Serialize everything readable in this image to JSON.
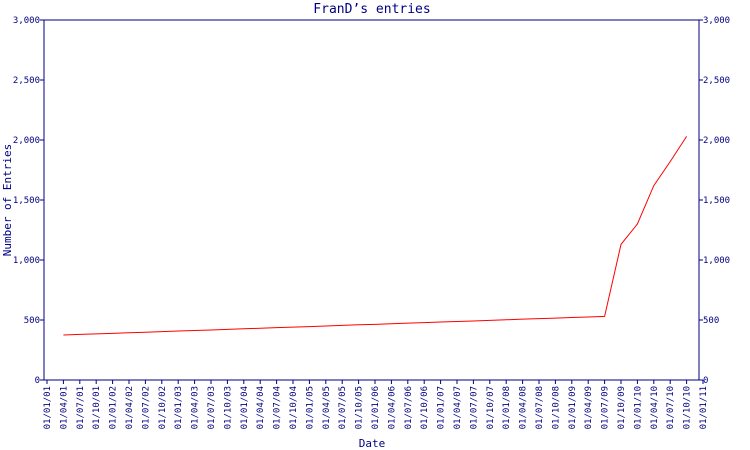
{
  "chart_data": {
    "type": "line",
    "title": "FranD’s entries",
    "x_label": "Date",
    "y_label": "Number of Entries",
    "categories": [
      "01/01/01",
      "01/04/01",
      "01/07/01",
      "01/10/01",
      "01/01/02",
      "01/04/02",
      "01/07/02",
      "01/10/02",
      "01/01/03",
      "01/04/03",
      "01/07/03",
      "01/10/03",
      "01/01/04",
      "01/04/04",
      "01/07/04",
      "01/10/04",
      "01/01/05",
      "01/04/05",
      "01/07/05",
      "01/10/05",
      "01/01/06",
      "01/04/06",
      "01/07/06",
      "01/10/06",
      "01/01/07",
      "01/04/07",
      "01/07/07",
      "01/10/07",
      "01/01/08",
      "01/04/08",
      "01/07/08",
      "01/10/08",
      "01/01/09",
      "01/04/09",
      "01/07/09",
      "01/10/09",
      "01/01/10",
      "01/04/10",
      "01/07/10",
      "01/10/10",
      "01/01/11"
    ],
    "series": [
      {
        "name": "entries",
        "color": "#ff0000",
        "values": [
          null,
          375,
          380,
          384,
          389,
          394,
          398,
          403,
          408,
          413,
          417,
          422,
          427,
          431,
          436,
          441,
          445,
          450,
          455,
          460,
          464,
          469,
          474,
          478,
          483,
          488,
          492,
          497,
          502,
          507,
          511,
          516,
          521,
          525,
          530,
          1130,
          1300,
          1620,
          1820,
          2030,
          null
        ]
      }
    ],
    "ylim": [
      0,
      3000
    ],
    "yticks": [
      0,
      500,
      {
        "value": 1000,
        "label": "1,000"
      },
      {
        "value": 1500,
        "label": "1,500"
      },
      {
        "value": 2000,
        "label": "2,000"
      },
      {
        "value": 2500,
        "label": "2,500"
      },
      {
        "value": 3000,
        "label": "3,000"
      }
    ],
    "axis_color": "#000080"
  }
}
